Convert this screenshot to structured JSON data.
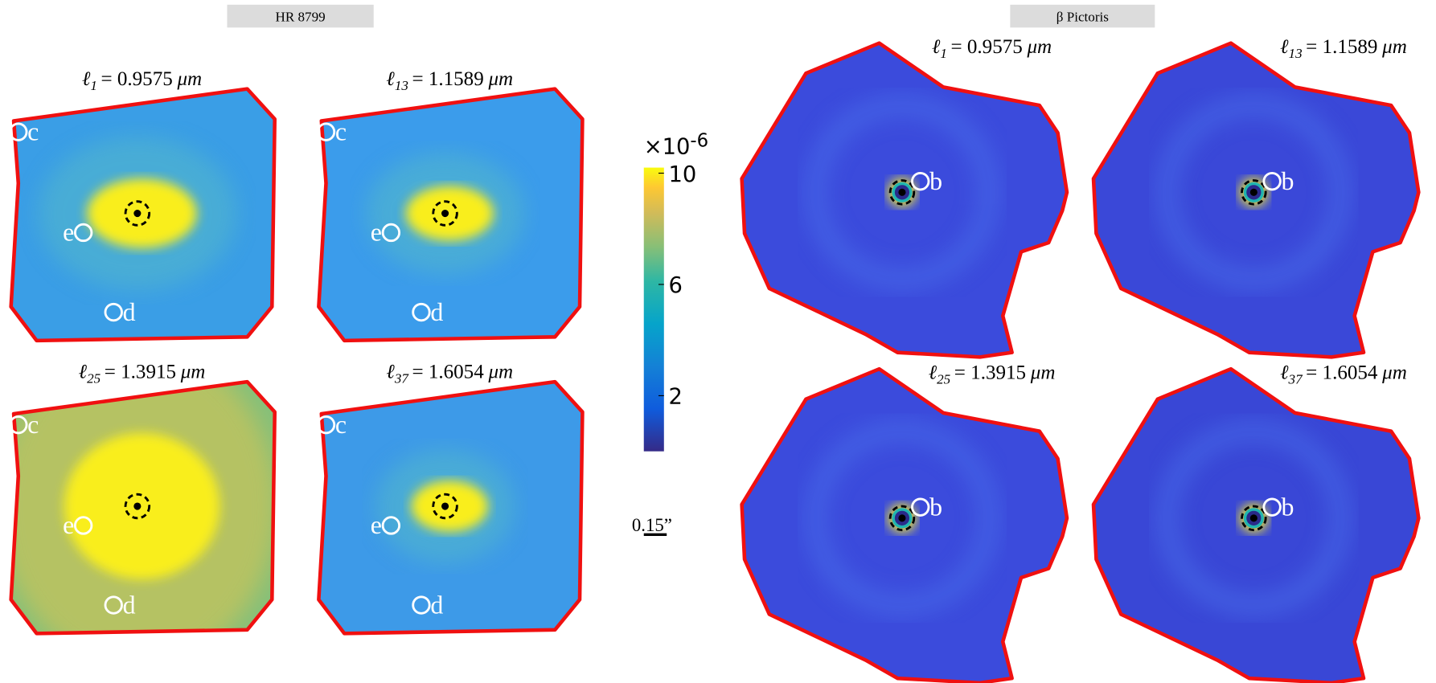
{
  "groups": [
    {
      "title": "HR 8799",
      "panels": [
        {
          "symbol": "ℓ",
          "index": "1",
          "wavelength": "= 0.9575",
          "unit": "μm",
          "planets": [
            "c",
            "e",
            "d"
          ]
        },
        {
          "symbol": "ℓ",
          "index": "13",
          "wavelength": "= 1.1589",
          "unit": "μm",
          "planets": [
            "c",
            "e",
            "d"
          ]
        },
        {
          "symbol": "ℓ",
          "index": "25",
          "wavelength": "= 1.3915",
          "unit": "μm",
          "planets": [
            "c",
            "e",
            "d"
          ]
        },
        {
          "symbol": "ℓ",
          "index": "37",
          "wavelength": "= 1.6054",
          "unit": "μm",
          "planets": [
            "c",
            "e",
            "d"
          ]
        }
      ]
    },
    {
      "title": "β Pictoris",
      "panels": [
        {
          "symbol": "ℓ",
          "index": "1",
          "wavelength": "= 0.9575",
          "unit": "μm",
          "planets": [
            "b"
          ]
        },
        {
          "symbol": "ℓ",
          "index": "13",
          "wavelength": "= 1.1589",
          "unit": "μm",
          "planets": [
            "b"
          ]
        },
        {
          "symbol": "ℓ",
          "index": "25",
          "wavelength": "= 1.3915",
          "unit": "μm",
          "planets": [
            "b"
          ]
        },
        {
          "symbol": "ℓ",
          "index": "37",
          "wavelength": "= 1.6054",
          "unit": "μm",
          "planets": [
            "b"
          ]
        }
      ]
    }
  ],
  "colorbar": {
    "multiplier": "×10",
    "exponent": "-6",
    "lim": [
      0,
      10.2
    ],
    "ticks": [
      2,
      6,
      10
    ]
  },
  "scale_bar": {
    "label": "0.15”"
  }
}
